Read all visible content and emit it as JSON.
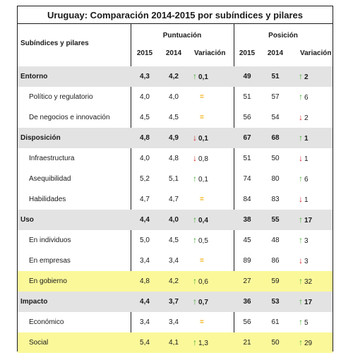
{
  "title": "Uruguay: Comparación 2014-2015 por subíndices y pilares",
  "headers": {
    "row_label": "Subíndices y pilares",
    "puntuacion": "Puntuación",
    "posicion": "Posición",
    "y2015": "2015",
    "y2014": "2014",
    "variacion": "Variación"
  },
  "rows": [
    {
      "label": "Entorno",
      "s15": "4,3",
      "s14": "4,2",
      "sv": "0,1",
      "sdir": "up",
      "p15": "49",
      "p14": "51",
      "pv": "2",
      "pdir": "up"
    },
    {
      "label": "Político y regulatorio",
      "s15": "4,0",
      "s14": "4,0",
      "sv": "=",
      "sdir": "eq",
      "p15": "51",
      "p14": "57",
      "pv": "6",
      "pdir": "up"
    },
    {
      "label": "De negocios e innovación",
      "s15": "4,5",
      "s14": "4,5",
      "sv": "=",
      "sdir": "eq",
      "p15": "56",
      "p14": "54",
      "pv": "2",
      "pdir": "down"
    },
    {
      "label": "Disposición",
      "s15": "4,8",
      "s14": "4,9",
      "sv": "0,1",
      "sdir": "down",
      "p15": "67",
      "p14": "68",
      "pv": "1",
      "pdir": "up"
    },
    {
      "label": "Infraestructura",
      "s15": "4,0",
      "s14": "4,8",
      "sv": "0,8",
      "sdir": "down",
      "p15": "51",
      "p14": "50",
      "pv": "1",
      "pdir": "down"
    },
    {
      "label": "Asequibilidad",
      "s15": "5,2",
      "s14": "5,1",
      "sv": "0,1",
      "sdir": "up",
      "p15": "74",
      "p14": "80",
      "pv": "6",
      "pdir": "up"
    },
    {
      "label": "Habilidades",
      "s15": "4,7",
      "s14": "4,7",
      "sv": "=",
      "sdir": "eq",
      "p15": "84",
      "p14": "83",
      "pv": "1",
      "pdir": "down"
    },
    {
      "label": "Uso",
      "s15": "4,4",
      "s14": "4,0",
      "sv": "0,4",
      "sdir": "up",
      "p15": "38",
      "p14": "55",
      "pv": "17",
      "pdir": "up"
    },
    {
      "label": "En individuos",
      "s15": "5,0",
      "s14": "4,5",
      "sv": "0,5",
      "sdir": "up",
      "p15": "45",
      "p14": "48",
      "pv": "3",
      "pdir": "up"
    },
    {
      "label": "En empresas",
      "s15": "3,4",
      "s14": "3,4",
      "sv": "=",
      "sdir": "eq",
      "p15": "89",
      "p14": "86",
      "pv": "3",
      "pdir": "down"
    },
    {
      "label": "En gobierno",
      "s15": "4,8",
      "s14": "4,2",
      "sv": "0,6",
      "sdir": "up",
      "p15": "27",
      "p14": "59",
      "pv": "32",
      "pdir": "up"
    },
    {
      "label": "Impacto",
      "s15": "4,4",
      "s14": "3,7",
      "sv": "0,7",
      "sdir": "up",
      "p15": "36",
      "p14": "53",
      "pv": "17",
      "pdir": "up"
    },
    {
      "label": "Económico",
      "s15": "3,4",
      "s14": "3,4",
      "sv": "=",
      "sdir": "eq",
      "p15": "56",
      "p14": "61",
      "pv": "5",
      "pdir": "up"
    },
    {
      "label": "Social",
      "s15": "5,4",
      "s14": "4,1",
      "sv": "1,3",
      "sdir": "up",
      "p15": "21",
      "p14": "50",
      "pv": "29",
      "pdir": "up"
    }
  ],
  "colors": {
    "up": "#3fae2a",
    "down": "#d42020",
    "equal": "#f0a800",
    "shade": "#e3e3e3",
    "highlight": "#fbf89a"
  },
  "icons": {
    "up": "green-up-arrow",
    "down": "red-down-arrow",
    "equal": "orange-equals"
  }
}
